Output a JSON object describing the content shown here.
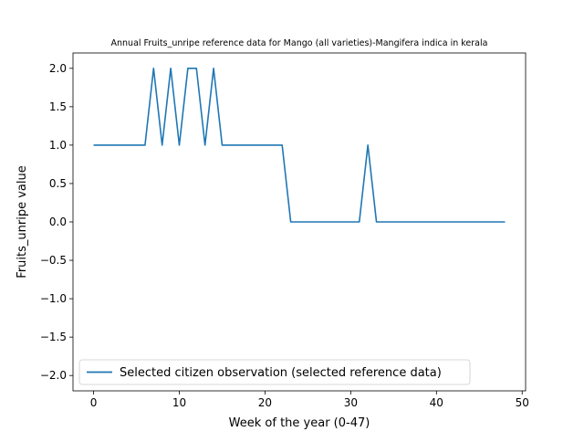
{
  "chart_data": {
    "type": "line",
    "title": "Annual Fruits_unripe reference data for Mango (all varieties)-Mangifera indica in kerala",
    "xlabel": "Week of the year (0-47)",
    "ylabel": "Fruits_unripe value",
    "xlim": [
      -2.4,
      50.4
    ],
    "ylim": [
      -2.2,
      2.2
    ],
    "x_ticks": [
      0,
      10,
      20,
      30,
      40,
      50
    ],
    "y_ticks": [
      -2.0,
      -1.5,
      -1.0,
      -0.5,
      0.0,
      0.5,
      1.0,
      1.5,
      2.0
    ],
    "x_tick_labels": [
      "0",
      "10",
      "20",
      "30",
      "40",
      "50"
    ],
    "y_tick_labels": [
      "−2.0",
      "−1.5",
      "−1.0",
      "−0.5",
      "0.0",
      "0.5",
      "1.0",
      "1.5",
      "2.0"
    ],
    "grid": false,
    "legend_position": "lower-left",
    "series": [
      {
        "name": "Selected citizen observation (selected reference data)",
        "color": "#1f77b4",
        "x": [
          0,
          1,
          2,
          3,
          4,
          5,
          6,
          7,
          8,
          9,
          10,
          11,
          12,
          13,
          14,
          15,
          16,
          17,
          18,
          19,
          20,
          21,
          22,
          23,
          24,
          25,
          26,
          27,
          28,
          29,
          30,
          31,
          32,
          33,
          34,
          35,
          36,
          37,
          38,
          39,
          40,
          41,
          42,
          43,
          44,
          45,
          46,
          47,
          48
        ],
        "y": [
          1,
          1,
          1,
          1,
          1,
          1,
          1,
          2,
          1,
          2,
          1,
          2,
          2,
          1,
          2,
          1,
          1,
          1,
          1,
          1,
          1,
          1,
          1,
          0,
          0,
          0,
          0,
          0,
          0,
          0,
          0,
          0,
          1,
          0,
          0,
          0,
          0,
          0,
          0,
          0,
          0,
          0,
          0,
          0,
          0,
          0,
          0,
          0,
          0
        ]
      }
    ]
  }
}
